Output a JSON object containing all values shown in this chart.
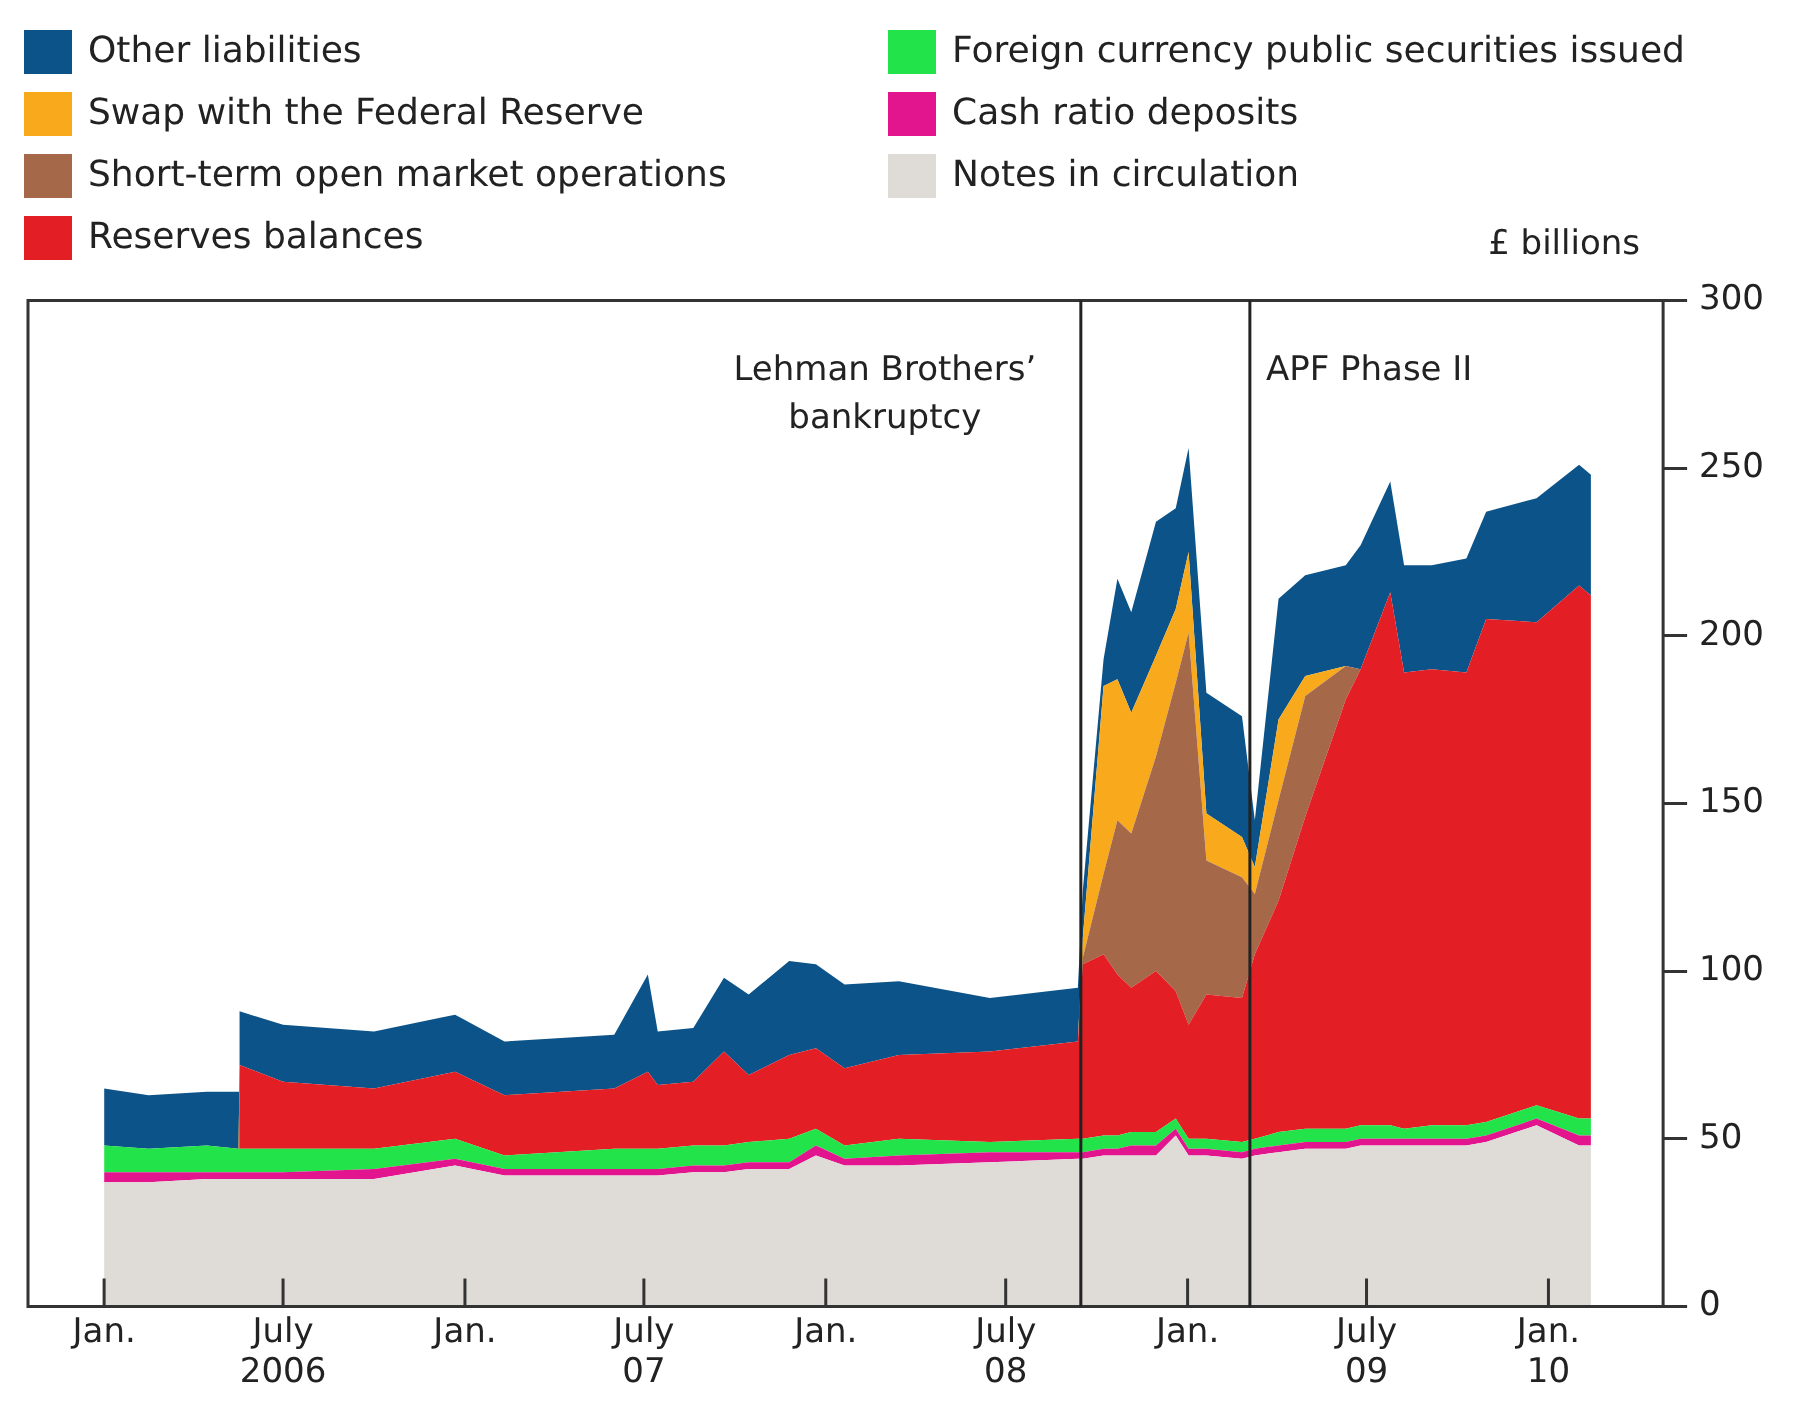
{
  "chart_data": {
    "type": "area",
    "stacked": true,
    "ylabel": "£ billions",
    "legend": "top",
    "xlim": [
      "2005-10-16",
      "2010-04-27"
    ],
    "xticks": [
      {
        "value": "2006-01-01",
        "label": "Jan."
      },
      {
        "value": "2006-07-01",
        "label": "July\n2006"
      },
      {
        "value": "2007-01-01",
        "label": "Jan."
      },
      {
        "value": "2007-07-01",
        "label": "July\n07"
      },
      {
        "value": "2008-01-01",
        "label": "Jan."
      },
      {
        "value": "2008-07-01",
        "label": "July\n08"
      },
      {
        "value": "2009-01-01",
        "label": "Jan."
      },
      {
        "value": "2009-07-01",
        "label": "July\n09"
      },
      {
        "value": "2010-01-01",
        "label": "Jan.\n10"
      }
    ],
    "ylim": [
      0,
      300
    ],
    "yticks": [
      0,
      50,
      100,
      150,
      200,
      250,
      300
    ],
    "x": [
      "2006-01-01",
      "2006-02-15",
      "2006-04-15",
      "2006-05-17",
      "2006-05-18",
      "2006-07-01",
      "2006-10-01",
      "2006-12-22",
      "2007-02-10",
      "2007-06-01",
      "2007-07-05",
      "2007-07-15",
      "2007-08-20",
      "2007-09-20",
      "2007-10-15",
      "2007-11-25",
      "2007-12-22",
      "2008-01-20",
      "2008-03-15",
      "2008-06-15",
      "2008-09-12",
      "2008-09-17",
      "2008-10-08",
      "2008-10-22",
      "2008-11-05",
      "2008-11-30",
      "2008-12-20",
      "2009-01-02",
      "2009-01-20",
      "2009-02-25",
      "2009-03-10",
      "2009-04-03",
      "2009-04-30",
      "2009-06-10",
      "2009-06-25",
      "2009-07-25",
      "2009-08-08",
      "2009-09-05",
      "2009-10-10",
      "2009-10-30",
      "2009-12-20",
      "2010-02-01",
      "2010-02-13"
    ],
    "series": [
      {
        "name": "Notes in circulation",
        "color": "#dfdcd7",
        "values": [
          37,
          37,
          38,
          38,
          38,
          38,
          38,
          42,
          39,
          39,
          39,
          39,
          40,
          40,
          41,
          41,
          45,
          42,
          42,
          43,
          44,
          44,
          45,
          45,
          45,
          45,
          51,
          45,
          45,
          44,
          45,
          46,
          47,
          47,
          48,
          48,
          48,
          48,
          48,
          49,
          54,
          48,
          48
        ]
      },
      {
        "name": "Cash ratio deposits",
        "color": "#e2158f",
        "values": [
          3,
          3,
          2,
          2,
          2,
          2,
          3,
          2,
          2,
          2,
          2,
          2,
          2,
          2,
          2,
          2,
          3,
          2,
          3,
          3,
          2,
          2,
          2,
          2,
          3,
          3,
          2,
          2,
          2,
          2,
          2,
          2,
          2,
          2,
          2,
          2,
          2,
          2,
          2,
          2,
          2,
          3,
          3
        ]
      },
      {
        "name": "Foreign currency public securities issued",
        "color": "#22e34a",
        "values": [
          8,
          7,
          8,
          7,
          7,
          7,
          6,
          6,
          4,
          6,
          6,
          6,
          6,
          6,
          6,
          7,
          5,
          4,
          5,
          3,
          4,
          4,
          4,
          4,
          4,
          4,
          3,
          3,
          3,
          3,
          3,
          4,
          4,
          4,
          4,
          4,
          3,
          4,
          4,
          4,
          4,
          5,
          5
        ]
      },
      {
        "name": "Reserves balances",
        "color": "#e31e24",
        "values": [
          0,
          0,
          0,
          0,
          25,
          20,
          18,
          20,
          18,
          18,
          23,
          19,
          19,
          28,
          20,
          25,
          24,
          23,
          25,
          27,
          29,
          52,
          54,
          48,
          43,
          48,
          38,
          34,
          43,
          43,
          55,
          69,
          93,
          128,
          136,
          159,
          136,
          136,
          135,
          150,
          144,
          159,
          156
        ]
      },
      {
        "name": "Short-term open market operations",
        "color": "#a5694a",
        "values": [
          0,
          0,
          0,
          0,
          0,
          0,
          0,
          0,
          0,
          0,
          0,
          0,
          0,
          0,
          0,
          0,
          0,
          0,
          0,
          0,
          0,
          2,
          24,
          46,
          46,
          64,
          92,
          117,
          40,
          36,
          18,
          30,
          36,
          10,
          0,
          0,
          0,
          0,
          0,
          0,
          0,
          0,
          0
        ]
      },
      {
        "name": "Swap with the Federal Reserve",
        "color": "#f9aa1c",
        "values": [
          0,
          0,
          0,
          0,
          0,
          0,
          0,
          0,
          0,
          0,
          0,
          0,
          0,
          0,
          0,
          0,
          0,
          0,
          0,
          0,
          0,
          6,
          56,
          42,
          36,
          30,
          22,
          24,
          14,
          12,
          8,
          24,
          6,
          0,
          0,
          0,
          0,
          0,
          0,
          0,
          0,
          0,
          0
        ]
      },
      {
        "name": "Other liabilities",
        "color": "#0b5389",
        "values": [
          17,
          16,
          16,
          17,
          16,
          17,
          17,
          17,
          16,
          16,
          29,
          16,
          16,
          22,
          24,
          28,
          25,
          25,
          22,
          16,
          16,
          14,
          8,
          30,
          30,
          40,
          30,
          31,
          36,
          36,
          14,
          36,
          30,
          30,
          37,
          33,
          32,
          31,
          34,
          32,
          37,
          36,
          36
        ]
      }
    ],
    "ref_lines": [
      {
        "axis": "x",
        "value": "2008-09-15",
        "label": "Lehman Brothers’ bankruptcy"
      },
      {
        "axis": "x",
        "value": "2009-03-05",
        "label": "APF Phase II"
      }
    ]
  }
}
